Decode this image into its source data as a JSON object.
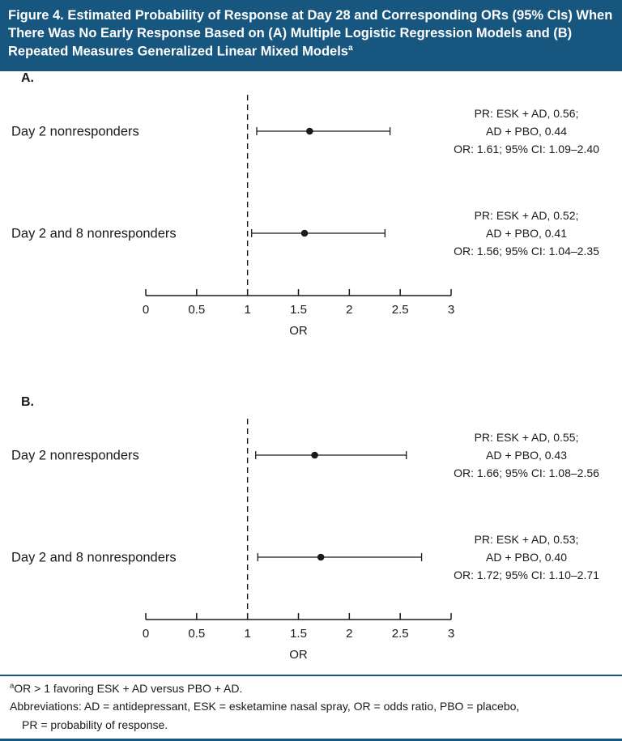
{
  "header": {
    "title": "Figure 4. Estimated Probability of Response at Day 28 and Corresponding ORs (95% CIs) When There Was No Early Response Based on  (A) Multiple Logistic Regression Models and (B) Repeated Measures Generalized Linear Mixed Models",
    "superscript": "a"
  },
  "colors": {
    "header_bg": "#17567E",
    "rule": "#17567E",
    "ink": "#1a1a1a"
  },
  "chart_data": [
    {
      "type": "scatter",
      "variant": "forest-plot",
      "panel_label": "A.",
      "panel_description": "Multiple Logistic Regression Models",
      "xlabel": "OR",
      "xlim": [
        0,
        3
      ],
      "x_ticks": [
        0,
        0.5,
        1,
        1.5,
        2,
        2.5,
        3
      ],
      "x_tick_labels": [
        "0",
        "0.5",
        "1",
        "1.5",
        "2",
        "2.5",
        "3"
      ],
      "reference_line": 1,
      "grid": false,
      "rows": [
        {
          "label": "Day 2 nonresponders",
          "or": 1.61,
          "ci_low": 1.09,
          "ci_high": 2.4,
          "annotation_lines": [
            "PR: ESK + AD, 0.56;",
            "AD + PBO, 0.44",
            "OR: 1.61; 95% CI: 1.09–2.40"
          ]
        },
        {
          "label": "Day 2 and 8 nonresponders",
          "or": 1.56,
          "ci_low": 1.04,
          "ci_high": 2.35,
          "annotation_lines": [
            "PR: ESK + AD, 0.52;",
            "AD + PBO, 0.41",
            "OR: 1.56; 95% CI: 1.04–2.35"
          ]
        }
      ]
    },
    {
      "type": "scatter",
      "variant": "forest-plot",
      "panel_label": "B.",
      "panel_description": "Repeated Measures Generalized Linear Mixed Models",
      "xlabel": "OR",
      "xlim": [
        0,
        3
      ],
      "x_ticks": [
        0,
        0.5,
        1,
        1.5,
        2,
        2.5,
        3
      ],
      "x_tick_labels": [
        "0",
        "0.5",
        "1",
        "1.5",
        "2",
        "2.5",
        "3"
      ],
      "reference_line": 1,
      "grid": false,
      "rows": [
        {
          "label": "Day 2 nonresponders",
          "or": 1.66,
          "ci_low": 1.08,
          "ci_high": 2.56,
          "annotation_lines": [
            "PR: ESK + AD, 0.55;",
            "AD + PBO, 0.43",
            "OR: 1.66; 95% CI: 1.08–2.56"
          ]
        },
        {
          "label": "Day 2 and 8 nonresponders",
          "or": 1.72,
          "ci_low": 1.1,
          "ci_high": 2.71,
          "annotation_lines": [
            "PR: ESK + AD, 0.53;",
            "AD + PBO, 0.40",
            "OR: 1.72; 95% CI: 1.10–2.71"
          ]
        }
      ]
    }
  ],
  "footnotes": {
    "note_sup": "a",
    "note_text": "OR > 1 favoring ESK + AD versus PBO + AD.",
    "abbreviations_line1": "Abbreviations: AD = antidepressant, ESK = esketamine nasal spray, OR = odds ratio, PBO = placebo,",
    "abbreviations_line2": "PR = probability of response."
  }
}
